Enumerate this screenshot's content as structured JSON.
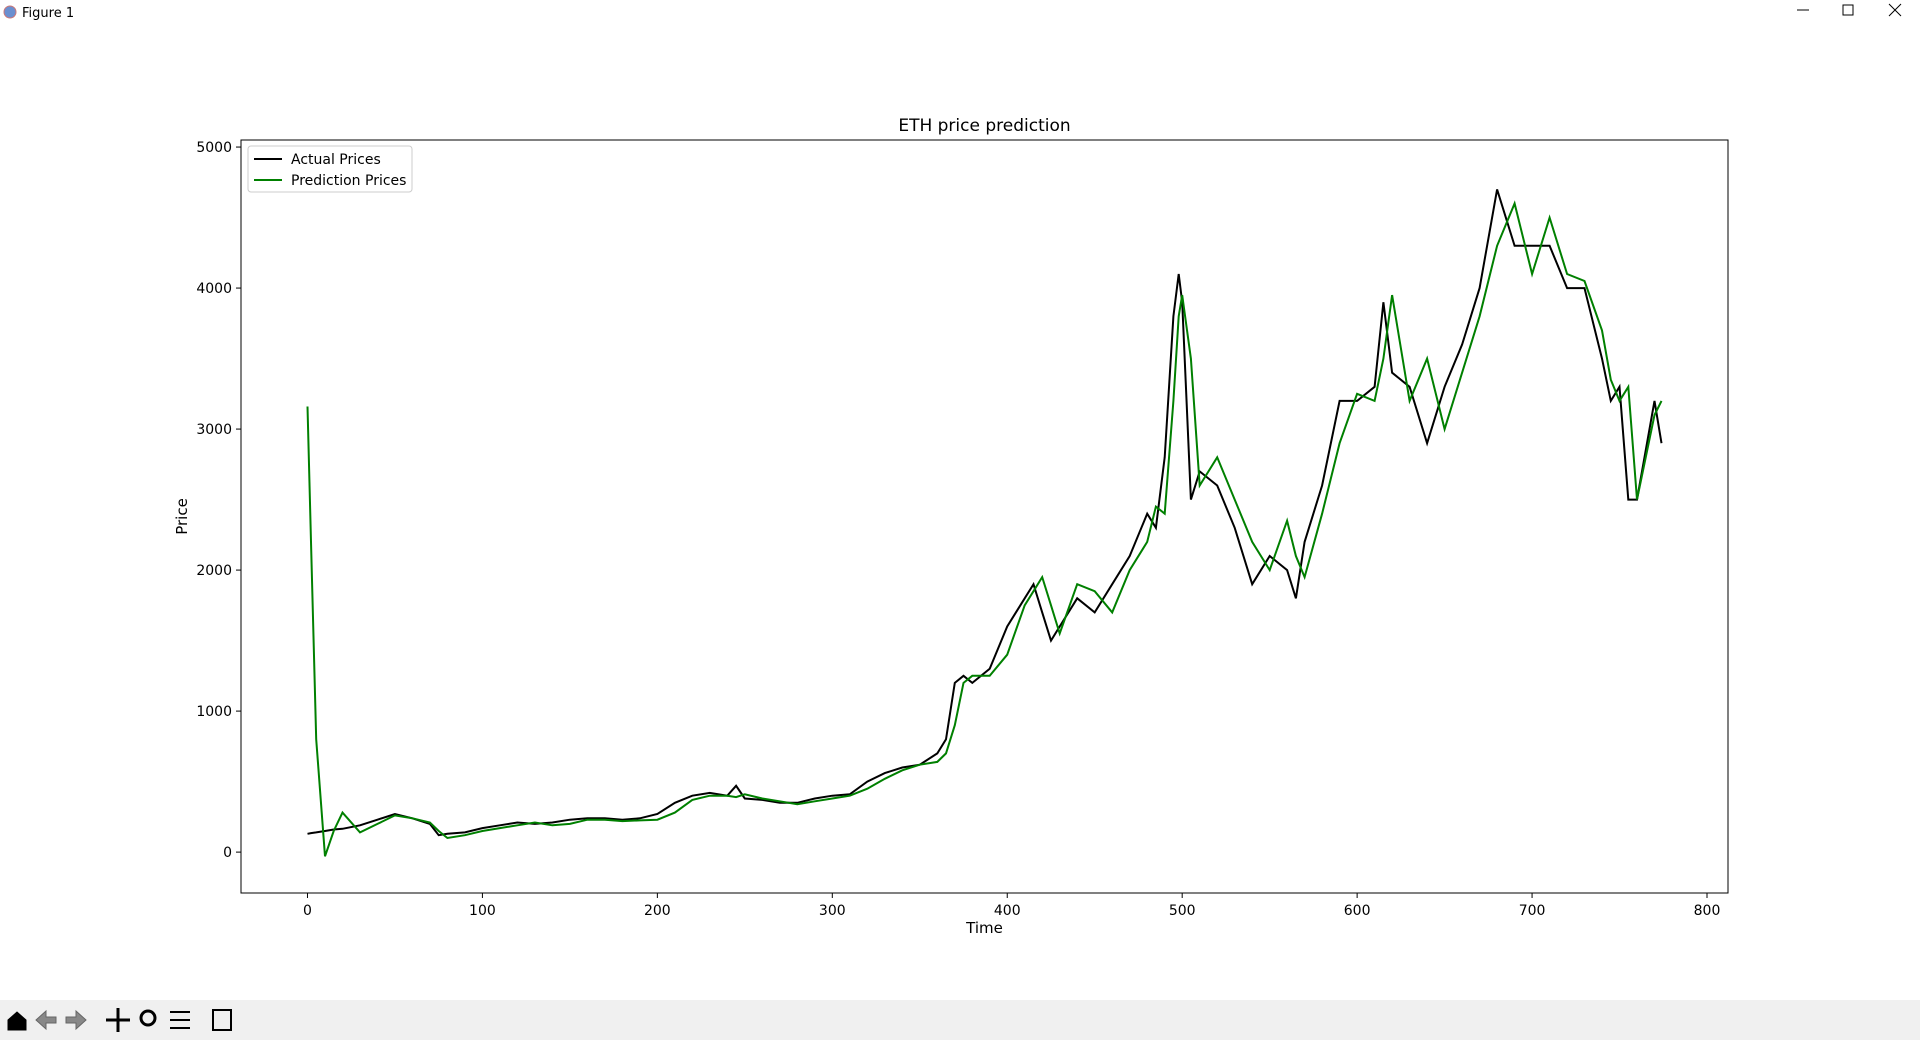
{
  "window": {
    "title": "Figure 1"
  },
  "chart_data": {
    "type": "line",
    "title": "ETH price prediction",
    "x_label": "Time",
    "y_label": "Price",
    "x": [
      0,
      2,
      5,
      10,
      15,
      20,
      30,
      40,
      50,
      60,
      70,
      75,
      80,
      90,
      100,
      110,
      120,
      130,
      140,
      150,
      160,
      170,
      180,
      190,
      200,
      210,
      220,
      230,
      240,
      245,
      250,
      260,
      270,
      280,
      290,
      300,
      310,
      320,
      330,
      340,
      350,
      360,
      365,
      370,
      375,
      380,
      390,
      400,
      410,
      415,
      420,
      425,
      430,
      440,
      450,
      460,
      470,
      480,
      485,
      490,
      495,
      498,
      500,
      505,
      510,
      520,
      530,
      540,
      550,
      560,
      565,
      570,
      580,
      590,
      600,
      610,
      615,
      620,
      630,
      640,
      650,
      660,
      670,
      680,
      690,
      700,
      710,
      720,
      730,
      740,
      745,
      750,
      755,
      760,
      770,
      774
    ],
    "series": [
      {
        "name": "Actual Prices",
        "color": "#000000",
        "values": [
          130,
          135,
          140,
          150,
          160,
          165,
          190,
          230,
          270,
          240,
          200,
          120,
          130,
          140,
          170,
          190,
          210,
          200,
          210,
          230,
          240,
          240,
          230,
          240,
          270,
          350,
          400,
          420,
          400,
          470,
          380,
          370,
          350,
          350,
          380,
          400,
          410,
          500,
          560,
          600,
          620,
          700,
          800,
          1200,
          1250,
          1200,
          1300,
          1600,
          1800,
          1900,
          1700,
          1500,
          1600,
          1800,
          1700,
          1900,
          2100,
          2400,
          2300,
          2800,
          3800,
          4100,
          3900,
          2500,
          2700,
          2600,
          2300,
          1900,
          2100,
          2000,
          1800,
          2200,
          2600,
          3200,
          3200,
          3300,
          3900,
          3400,
          3300,
          2900,
          3300,
          3600,
          4000,
          4700,
          4300,
          4300,
          4300,
          4000,
          4000,
          3500,
          3200,
          3300,
          2500,
          2500,
          3200,
          2900
        ]
      },
      {
        "name": "Prediction Prices",
        "color": "#008000",
        "values": [
          3160,
          2200,
          800,
          -30,
          150,
          280,
          140,
          200,
          260,
          240,
          210,
          150,
          100,
          120,
          150,
          170,
          190,
          210,
          190,
          200,
          230,
          230,
          220,
          225,
          230,
          280,
          370,
          400,
          400,
          390,
          410,
          380,
          360,
          340,
          360,
          380,
          400,
          450,
          520,
          580,
          620,
          640,
          700,
          900,
          1200,
          1250,
          1250,
          1400,
          1750,
          1850,
          1950,
          1750,
          1550,
          1900,
          1850,
          1700,
          2000,
          2200,
          2450,
          2400,
          3200,
          3800,
          3950,
          3500,
          2600,
          2800,
          2500,
          2200,
          2000,
          2350,
          2100,
          1950,
          2400,
          2900,
          3250,
          3200,
          3500,
          3950,
          3200,
          3500,
          3000,
          3400,
          3800,
          4300,
          4600,
          4100,
          4500,
          4100,
          4050,
          3700,
          3350,
          3200,
          3300,
          2500,
          3100,
          3200
        ]
      }
    ],
    "xlim": [
      -38,
      812
    ],
    "ylim": [
      -290,
      5050
    ],
    "xticks": [
      0,
      100,
      200,
      300,
      400,
      500,
      600,
      700,
      800
    ],
    "yticks": [
      0,
      1000,
      2000,
      3000,
      4000,
      5000
    ],
    "legend": "upper left"
  }
}
